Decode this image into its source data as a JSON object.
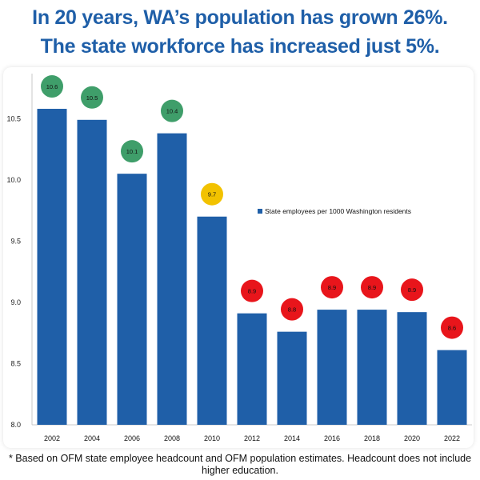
{
  "page": {
    "title_line1": "In 20 years, WA’s population has grown 26%.",
    "title_line2": "The state workforce has increased just 5%.",
    "footnote": "* Based on OFM state employee headcount and OFM population estimates. Headcount does not include higher education."
  },
  "colors": {
    "title": "#1f5fa8",
    "bar": "#1f5fa8",
    "badge_green": "#3f9e6a",
    "badge_yellow": "#f2c200",
    "badge_red": "#e8151b"
  },
  "chart_data": {
    "type": "bar",
    "categories": [
      "2002",
      "2004",
      "2006",
      "2008",
      "2010",
      "2012",
      "2014",
      "2016",
      "2018",
      "2020",
      "2022"
    ],
    "series": [
      {
        "name": "State employees per 1000 Washington residents",
        "values": [
          10.58,
          10.49,
          10.05,
          10.38,
          9.7,
          8.91,
          8.76,
          8.94,
          8.94,
          8.92,
          8.61
        ]
      }
    ],
    "data_labels": [
      "10.6",
      "10.5",
      "10.1",
      "10.4",
      "9.7",
      "8.9",
      "8.8",
      "8.9",
      "8.9",
      "8.9",
      "8.6"
    ],
    "label_colors": [
      "green",
      "green",
      "green",
      "green",
      "yellow",
      "red",
      "red",
      "red",
      "red",
      "red",
      "red"
    ],
    "y_ticks": [
      "8.0",
      "8.5",
      "9.0",
      "9.5",
      "10.0",
      "10.5"
    ],
    "ylim": [
      8.0,
      10.75
    ],
    "legend_position": "right",
    "grid": false
  }
}
